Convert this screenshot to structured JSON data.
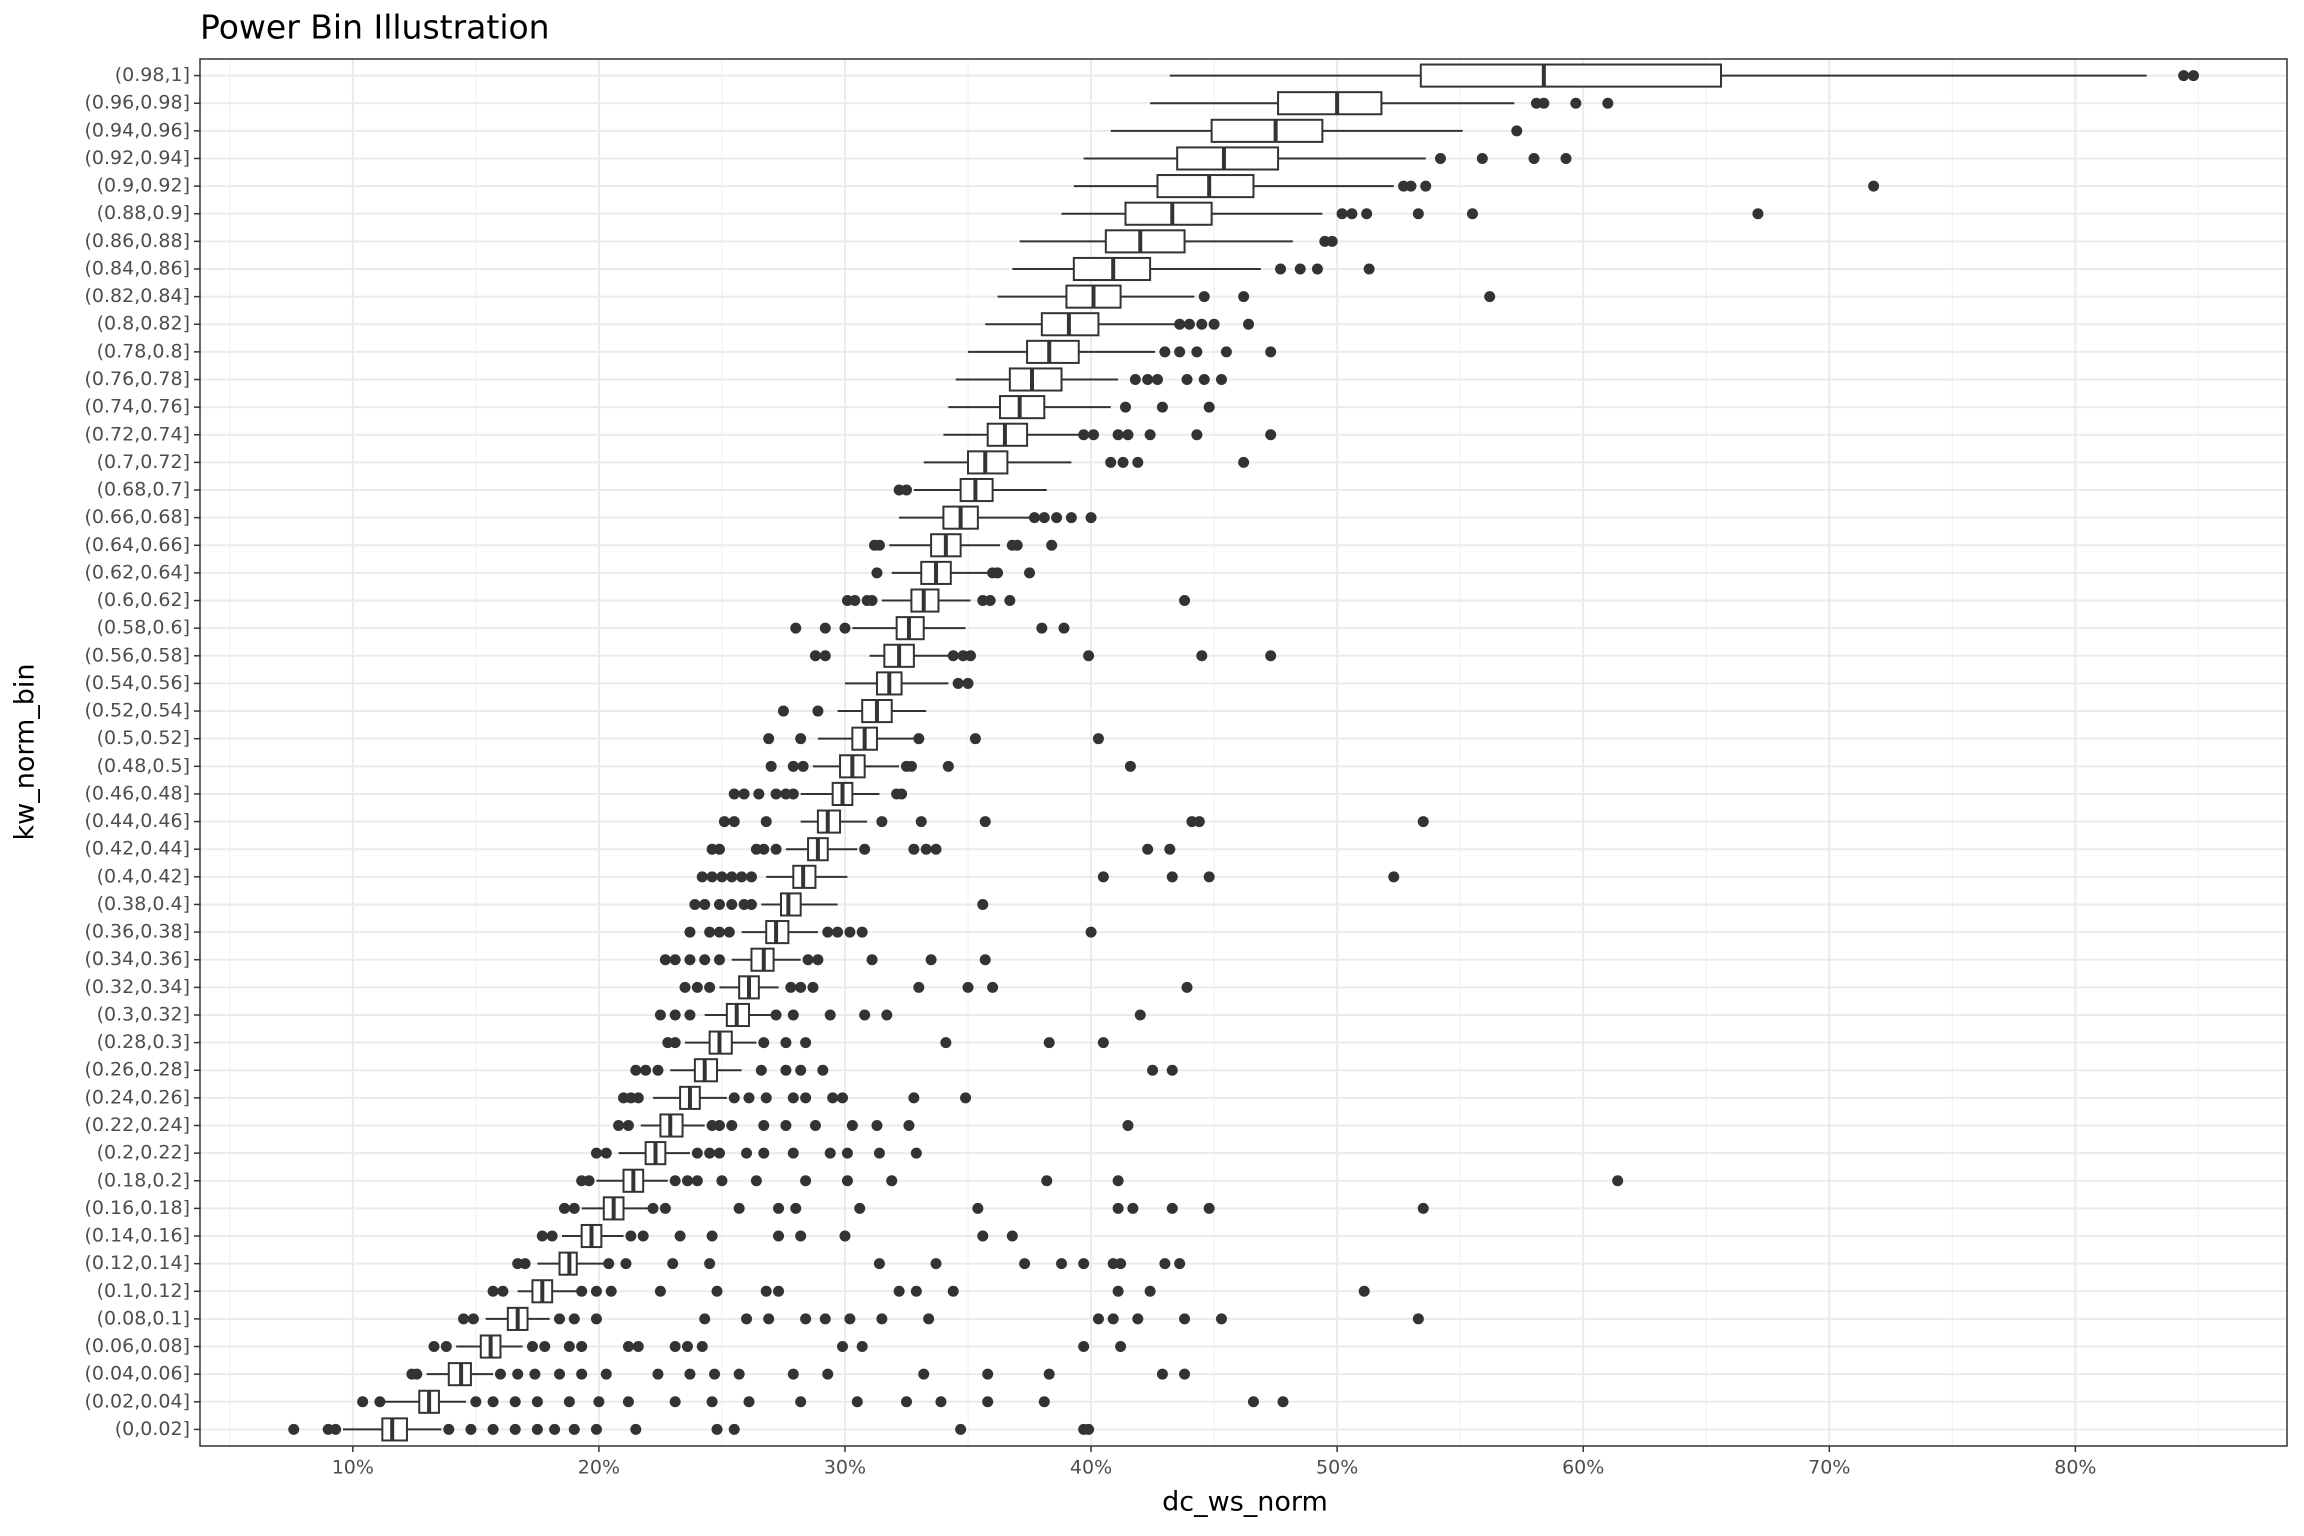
{
  "chart_data": {
    "type": "boxplot",
    "title": "Power Bin Illustration",
    "x_label": "dc_ws_norm",
    "y_label": "kw_norm_bin",
    "orientation": "horizontal",
    "grid": true,
    "box_fill": "#ffffff",
    "color": "#333333",
    "xlim": [
      3.79,
      88.6
    ],
    "xticks": [
      {
        "value": 10,
        "label": "10%"
      },
      {
        "value": 20,
        "label": "20%"
      },
      {
        "value": 30,
        "label": "30%"
      },
      {
        "value": 40,
        "label": "40%"
      },
      {
        "value": 50,
        "label": "50%"
      },
      {
        "value": 60,
        "label": "60%"
      },
      {
        "value": 70,
        "label": "70%"
      },
      {
        "value": 80,
        "label": "80%"
      }
    ],
    "categories": [
      "(0,0.02]",
      "(0.02,0.04]",
      "(0.04,0.06]",
      "(0.06,0.08]",
      "(0.08,0.1]",
      "(0.1,0.12]",
      "(0.12,0.14]",
      "(0.14,0.16]",
      "(0.16,0.18]",
      "(0.18,0.2]",
      "(0.2,0.22]",
      "(0.22,0.24]",
      "(0.24,0.26]",
      "(0.26,0.28]",
      "(0.28,0.3]",
      "(0.3,0.32]",
      "(0.32,0.34]",
      "(0.34,0.36]",
      "(0.36,0.38]",
      "(0.38,0.4]",
      "(0.4,0.42]",
      "(0.42,0.44]",
      "(0.44,0.46]",
      "(0.46,0.48]",
      "(0.48,0.5]",
      "(0.5,0.52]",
      "(0.52,0.54]",
      "(0.54,0.56]",
      "(0.56,0.58]",
      "(0.58,0.6]",
      "(0.6,0.62]",
      "(0.62,0.64]",
      "(0.64,0.66]",
      "(0.66,0.68]",
      "(0.68,0.7]",
      "(0.7,0.72]",
      "(0.72,0.74]",
      "(0.74,0.76]",
      "(0.76,0.78]",
      "(0.78,0.8]",
      "(0.8,0.82]",
      "(0.82,0.84]",
      "(0.84,0.86]",
      "(0.86,0.88]",
      "(0.88,0.9]",
      "(0.9,0.92]",
      "(0.92,0.94]",
      "(0.94,0.96]",
      "(0.96,0.98]",
      "(0.98,1]"
    ],
    "boxes": [
      {
        "low": 9.6,
        "q1": 11.2,
        "median": 11.6,
        "q3": 12.2,
        "high": 13.6,
        "outliers": [
          7.6,
          9.0,
          9.3,
          13.9,
          14.8,
          15.7,
          16.6,
          17.5,
          18.2,
          19.0,
          19.9,
          21.5,
          24.8,
          25.5,
          34.7,
          39.7,
          39.9
        ]
      },
      {
        "low": 11.3,
        "q1": 12.7,
        "median": 13.1,
        "q3": 13.5,
        "high": 14.6,
        "outliers": [
          10.4,
          11.1,
          15.0,
          15.7,
          16.6,
          17.5,
          18.8,
          20.0,
          21.2,
          23.1,
          24.6,
          26.1,
          28.2,
          30.5,
          32.5,
          33.9,
          35.8,
          38.1,
          46.6,
          47.8
        ]
      },
      {
        "low": 13.0,
        "q1": 13.9,
        "median": 14.4,
        "q3": 14.8,
        "high": 15.7,
        "outliers": [
          12.4,
          12.6,
          16.0,
          16.7,
          17.4,
          18.4,
          19.3,
          20.3,
          22.4,
          23.7,
          24.7,
          25.7,
          27.9,
          29.3,
          33.2,
          35.8,
          38.3,
          42.9,
          43.8
        ]
      },
      {
        "low": 14.2,
        "q1": 15.2,
        "median": 15.6,
        "q3": 16.0,
        "high": 16.9,
        "outliers": [
          13.3,
          13.8,
          17.3,
          17.8,
          18.8,
          19.3,
          21.2,
          21.6,
          23.1,
          23.6,
          24.2,
          29.9,
          30.7,
          39.7,
          41.2
        ]
      },
      {
        "low": 15.4,
        "q1": 16.3,
        "median": 16.7,
        "q3": 17.1,
        "high": 18.0,
        "outliers": [
          14.5,
          14.9,
          18.4,
          19.0,
          19.9,
          24.3,
          26.0,
          26.9,
          28.4,
          29.2,
          30.2,
          31.5,
          33.4,
          40.3,
          40.9,
          41.9,
          43.8,
          45.3,
          53.3
        ]
      },
      {
        "low": 16.7,
        "q1": 17.3,
        "median": 17.7,
        "q3": 18.1,
        "high": 19.1,
        "outliers": [
          15.7,
          16.1,
          19.3,
          19.9,
          20.5,
          22.5,
          24.8,
          26.8,
          27.3,
          32.2,
          32.9,
          34.4,
          41.1,
          42.4,
          51.1
        ]
      },
      {
        "low": 17.5,
        "q1": 18.4,
        "median": 18.8,
        "q3": 19.1,
        "high": 20.2,
        "outliers": [
          16.7,
          17.0,
          20.4,
          21.1,
          23.0,
          24.5,
          31.4,
          33.7,
          37.3,
          38.8,
          39.7,
          40.9,
          41.2,
          43.0,
          43.6
        ]
      },
      {
        "low": 18.5,
        "q1": 19.3,
        "median": 19.7,
        "q3": 20.1,
        "high": 21.0,
        "outliers": [
          17.7,
          18.1,
          21.3,
          21.8,
          23.3,
          24.6,
          27.3,
          28.2,
          30.0,
          35.6,
          36.8
        ]
      },
      {
        "low": 19.3,
        "q1": 20.2,
        "median": 20.6,
        "q3": 21.0,
        "high": 22.0,
        "outliers": [
          18.6,
          19.0,
          22.2,
          22.7,
          25.7,
          27.3,
          28.0,
          30.6,
          35.4,
          41.1,
          41.7,
          43.3,
          44.8,
          53.5
        ]
      },
      {
        "low": 19.9,
        "q1": 21.0,
        "median": 21.4,
        "q3": 21.8,
        "high": 22.8,
        "outliers": [
          19.3,
          19.6,
          23.1,
          23.6,
          24.0,
          25.0,
          26.4,
          28.4,
          30.1,
          31.9,
          38.2,
          41.1,
          61.4
        ]
      },
      {
        "low": 20.8,
        "q1": 21.9,
        "median": 22.3,
        "q3": 22.7,
        "high": 23.7,
        "outliers": [
          19.9,
          20.3,
          24.0,
          24.5,
          24.9,
          26.0,
          26.7,
          27.9,
          29.4,
          30.1,
          31.4,
          32.9
        ]
      },
      {
        "low": 21.7,
        "q1": 22.5,
        "median": 22.9,
        "q3": 23.4,
        "high": 24.3,
        "outliers": [
          20.8,
          21.2,
          24.6,
          24.9,
          25.4,
          26.7,
          27.6,
          28.8,
          30.3,
          31.3,
          32.6,
          41.5
        ]
      },
      {
        "low": 22.2,
        "q1": 23.3,
        "median": 23.7,
        "q3": 24.1,
        "high": 25.2,
        "outliers": [
          21.0,
          21.3,
          21.6,
          25.5,
          26.1,
          26.8,
          27.9,
          28.4,
          29.5,
          29.9,
          32.8,
          34.9
        ]
      },
      {
        "low": 22.9,
        "q1": 23.9,
        "median": 24.3,
        "q3": 24.8,
        "high": 25.8,
        "outliers": [
          21.5,
          21.9,
          22.4,
          26.6,
          27.6,
          28.2,
          29.1,
          42.5,
          43.3
        ]
      },
      {
        "low": 23.5,
        "q1": 24.5,
        "median": 24.9,
        "q3": 25.4,
        "high": 26.4,
        "outliers": [
          22.8,
          23.1,
          26.7,
          27.6,
          28.4,
          34.1,
          38.3,
          40.5
        ]
      },
      {
        "low": 24.3,
        "q1": 25.2,
        "median": 25.6,
        "q3": 26.1,
        "high": 27.0,
        "outliers": [
          22.5,
          23.1,
          23.7,
          27.2,
          27.9,
          29.4,
          30.8,
          31.7,
          42.0
        ]
      },
      {
        "low": 24.9,
        "q1": 25.7,
        "median": 26.1,
        "q3": 26.5,
        "high": 27.3,
        "outliers": [
          23.5,
          24.0,
          24.5,
          27.8,
          28.2,
          28.7,
          33.0,
          35.0,
          36.0,
          43.9
        ]
      },
      {
        "low": 25.4,
        "q1": 26.2,
        "median": 26.7,
        "q3": 27.1,
        "high": 28.2,
        "outliers": [
          22.7,
          23.1,
          23.7,
          24.3,
          24.9,
          28.5,
          28.9,
          31.1,
          33.5,
          35.7
        ]
      },
      {
        "low": 25.8,
        "q1": 26.8,
        "median": 27.2,
        "q3": 27.7,
        "high": 28.9,
        "outliers": [
          23.7,
          24.5,
          24.9,
          25.3,
          29.3,
          29.7,
          30.2,
          30.7,
          40.0
        ]
      },
      {
        "low": 26.6,
        "q1": 27.4,
        "median": 27.7,
        "q3": 28.2,
        "high": 29.7,
        "outliers": [
          23.9,
          24.3,
          24.9,
          25.4,
          25.9,
          26.2,
          35.6
        ]
      },
      {
        "low": 26.8,
        "q1": 27.9,
        "median": 28.3,
        "q3": 28.8,
        "high": 30.1,
        "outliers": [
          24.2,
          24.6,
          25.0,
          25.4,
          25.8,
          26.2,
          40.5,
          43.3,
          44.8,
          52.3
        ]
      },
      {
        "low": 27.6,
        "q1": 28.5,
        "median": 28.9,
        "q3": 29.3,
        "high": 30.5,
        "outliers": [
          24.6,
          24.9,
          26.4,
          26.7,
          27.2,
          30.8,
          32.8,
          33.3,
          33.7,
          42.3,
          43.2
        ]
      },
      {
        "low": 28.2,
        "q1": 28.9,
        "median": 29.3,
        "q3": 29.8,
        "high": 30.9,
        "outliers": [
          25.1,
          25.5,
          26.8,
          31.5,
          33.1,
          35.7,
          44.1,
          44.4,
          53.5
        ]
      },
      {
        "low": 28.2,
        "q1": 29.5,
        "median": 29.9,
        "q3": 30.3,
        "high": 31.4,
        "outliers": [
          25.5,
          25.9,
          26.5,
          27.2,
          27.6,
          27.9,
          32.1,
          32.3
        ]
      },
      {
        "low": 28.7,
        "q1": 29.8,
        "median": 30.3,
        "q3": 30.8,
        "high": 32.2,
        "outliers": [
          27.0,
          27.9,
          28.3,
          32.5,
          32.7,
          34.2,
          41.6
        ]
      },
      {
        "low": 28.9,
        "q1": 30.3,
        "median": 30.8,
        "q3": 31.3,
        "high": 32.8,
        "outliers": [
          26.9,
          28.2,
          33.0,
          35.3,
          40.3
        ]
      },
      {
        "low": 29.7,
        "q1": 30.7,
        "median": 31.3,
        "q3": 31.9,
        "high": 33.3,
        "outliers": [
          27.5,
          28.9
        ]
      },
      {
        "low": 30.0,
        "q1": 31.3,
        "median": 31.8,
        "q3": 32.3,
        "high": 34.2,
        "outliers": [
          34.6,
          35.0
        ]
      },
      {
        "low": 31.0,
        "q1": 31.6,
        "median": 32.2,
        "q3": 32.8,
        "high": 34.2,
        "outliers": [
          28.8,
          29.2,
          34.4,
          34.8,
          35.1,
          39.9,
          44.5,
          47.3
        ]
      },
      {
        "low": 30.3,
        "q1": 32.1,
        "median": 32.6,
        "q3": 33.2,
        "high": 34.9,
        "outliers": [
          28.0,
          29.2,
          30.0,
          38.0,
          38.9
        ]
      },
      {
        "low": 31.5,
        "q1": 32.7,
        "median": 33.2,
        "q3": 33.8,
        "high": 35.1,
        "outliers": [
          30.1,
          30.4,
          30.9,
          31.1,
          35.6,
          35.9,
          36.7,
          43.8
        ]
      },
      {
        "low": 31.9,
        "q1": 33.1,
        "median": 33.7,
        "q3": 34.3,
        "high": 35.8,
        "outliers": [
          31.3,
          36.0,
          36.2,
          37.5
        ]
      },
      {
        "low": 31.8,
        "q1": 33.5,
        "median": 34.1,
        "q3": 34.7,
        "high": 36.3,
        "outliers": [
          31.2,
          31.4,
          36.8,
          37.0,
          38.4
        ]
      },
      {
        "low": 32.2,
        "q1": 34.0,
        "median": 34.7,
        "q3": 35.4,
        "high": 37.5,
        "outliers": [
          37.7,
          38.1,
          38.6,
          39.2,
          40.0
        ]
      },
      {
        "low": 32.8,
        "q1": 34.7,
        "median": 35.3,
        "q3": 36.0,
        "high": 38.2,
        "outliers": [
          32.2,
          32.5
        ]
      },
      {
        "low": 33.2,
        "q1": 35.0,
        "median": 35.7,
        "q3": 36.6,
        "high": 39.2,
        "outliers": [
          40.8,
          41.3,
          41.9,
          46.2
        ]
      },
      {
        "low": 34.0,
        "q1": 35.8,
        "median": 36.5,
        "q3": 37.4,
        "high": 39.6,
        "outliers": [
          39.7,
          40.1,
          41.1,
          41.5,
          42.4,
          44.3,
          47.3
        ]
      },
      {
        "low": 34.2,
        "q1": 36.3,
        "median": 37.1,
        "q3": 38.1,
        "high": 40.8,
        "outliers": [
          41.4,
          42.9,
          44.8
        ]
      },
      {
        "low": 34.5,
        "q1": 36.7,
        "median": 37.6,
        "q3": 38.8,
        "high": 41.1,
        "outliers": [
          41.8,
          42.3,
          42.7,
          43.9,
          44.6,
          45.3
        ]
      },
      {
        "low": 35.0,
        "q1": 37.4,
        "median": 38.3,
        "q3": 39.5,
        "high": 42.6,
        "outliers": [
          43.0,
          43.6,
          44.3,
          45.5,
          47.3
        ]
      },
      {
        "low": 35.7,
        "q1": 38.0,
        "median": 39.1,
        "q3": 40.3,
        "high": 43.5,
        "outliers": [
          43.6,
          44.0,
          44.5,
          45.0,
          46.4
        ]
      },
      {
        "low": 36.2,
        "q1": 39.0,
        "median": 40.1,
        "q3": 41.2,
        "high": 44.2,
        "outliers": [
          44.6,
          46.2,
          56.2
        ]
      },
      {
        "low": 36.8,
        "q1": 39.3,
        "median": 40.9,
        "q3": 42.4,
        "high": 46.9,
        "outliers": [
          47.7,
          48.5,
          49.2,
          51.3
        ]
      },
      {
        "low": 37.1,
        "q1": 40.6,
        "median": 42.0,
        "q3": 43.8,
        "high": 48.2,
        "outliers": [
          49.5,
          49.8
        ]
      },
      {
        "low": 38.8,
        "q1": 41.4,
        "median": 43.3,
        "q3": 44.9,
        "high": 49.4,
        "outliers": [
          50.2,
          50.6,
          51.2,
          53.3,
          55.5,
          67.1
        ]
      },
      {
        "low": 39.3,
        "q1": 42.7,
        "median": 44.8,
        "q3": 46.6,
        "high": 52.3,
        "outliers": [
          52.7,
          53.0,
          53.6,
          71.8
        ]
      },
      {
        "low": 39.7,
        "q1": 43.5,
        "median": 45.4,
        "q3": 47.6,
        "high": 53.6,
        "outliers": [
          54.2,
          55.9,
          58.0,
          59.3
        ]
      },
      {
        "low": 40.8,
        "q1": 44.9,
        "median": 47.5,
        "q3": 49.4,
        "high": 55.1,
        "outliers": [
          57.3
        ]
      },
      {
        "low": 42.4,
        "q1": 47.6,
        "median": 50.0,
        "q3": 51.8,
        "high": 57.2,
        "outliers": [
          58.1,
          58.4,
          59.7,
          61.0
        ]
      },
      {
        "low": 43.2,
        "q1": 53.4,
        "median": 58.4,
        "q3": 65.6,
        "high": 82.9,
        "outliers": [
          84.4,
          84.8
        ]
      }
    ]
  }
}
